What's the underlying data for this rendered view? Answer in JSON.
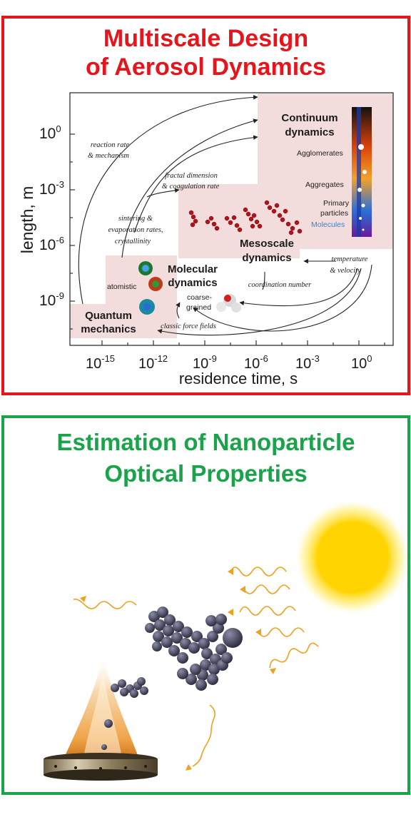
{
  "top": {
    "title_line1": "Multiscale Design",
    "title_line2": "of Aerosol Dynamics",
    "color": "#e8141c",
    "y_axis_label": "length, m",
    "x_axis_label": "residence time, s",
    "y_ticks": [
      {
        "base": "10",
        "exp": "0"
      },
      {
        "base": "10",
        "exp": "-3"
      },
      {
        "base": "10",
        "exp": "-6"
      },
      {
        "base": "10",
        "exp": "-9"
      }
    ],
    "x_ticks": [
      {
        "base": "10",
        "exp": "-15"
      },
      {
        "base": "10",
        "exp": "-12"
      },
      {
        "base": "10",
        "exp": "-9"
      },
      {
        "base": "10",
        "exp": "-6"
      },
      {
        "base": "10",
        "exp": "-3"
      },
      {
        "base": "10",
        "exp": "0"
      }
    ],
    "regimes": {
      "quantum_1": "Quantum",
      "quantum_2": "mechanics",
      "molecular_1": "Molecular",
      "molecular_2": "dynamics",
      "mesoscale_1": "Mesoscale",
      "mesoscale_2": "dynamics",
      "continuum_1": "Continuum",
      "continuum_2": "dynamics"
    },
    "annotations": {
      "reaction_1": "reaction rate",
      "reaction_2": "& mechanism",
      "fractal_1": "fractal dimension",
      "fractal_2": "& coagulation rate",
      "sintering_1": "sintering &",
      "sintering_2": "evaporation rates,",
      "sintering_3": "crystallinity",
      "temperature_1": "temperature",
      "temperature_2": "& velocity",
      "coordination": "coordination number",
      "classic": "classic force fields",
      "atomistic": "atomistic",
      "coarse_1": "coarse-",
      "coarse_2": "grained",
      "agglomerates": "Agglomerates",
      "aggregates": "Aggregates",
      "primary_1": "Primary",
      "primary_2": "particles",
      "molecules": "Molecules"
    }
  },
  "bottom": {
    "title_line1": "Estimation of Nanoparticle",
    "title_line2": "Optical Properties",
    "color": "#1aa34a"
  },
  "colors": {
    "regime_fill": "#f3dcdc",
    "particles": "#3e3e52",
    "waves": "#f0a020",
    "sun": "#ffd400"
  }
}
